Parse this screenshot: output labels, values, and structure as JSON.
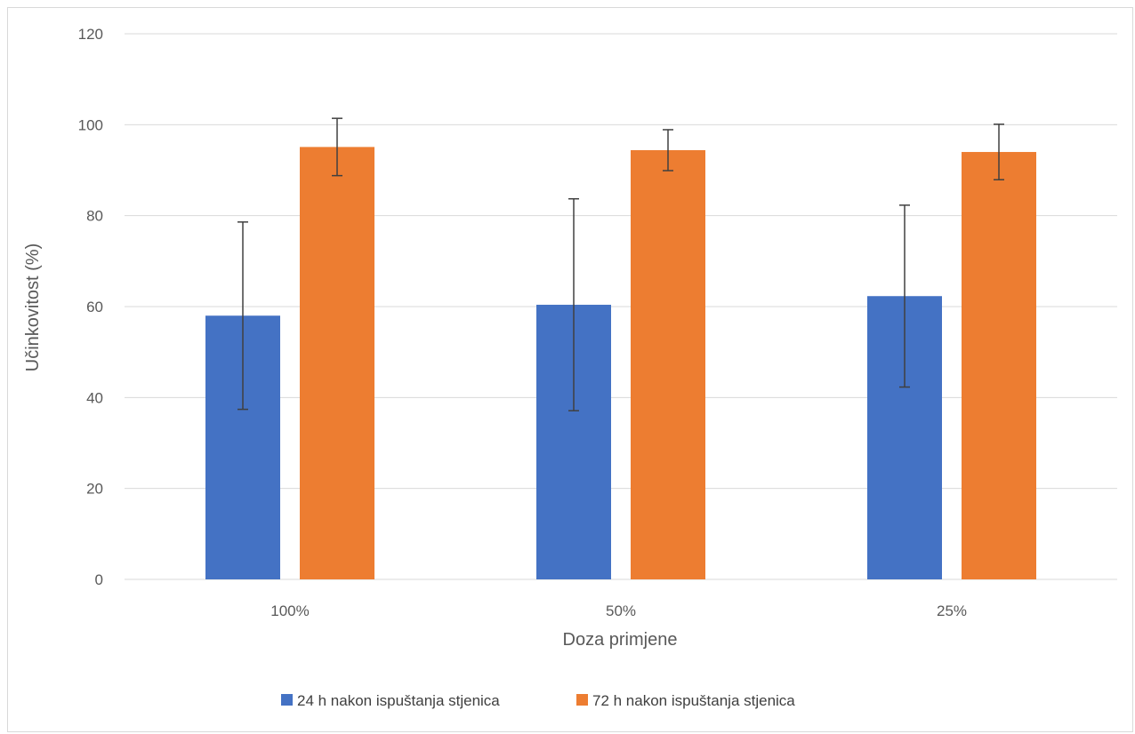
{
  "chart_data": {
    "type": "bar",
    "title": "",
    "xlabel": "Doza primjene",
    "ylabel": "Učinkovitost (%)",
    "ylim": [
      0,
      120
    ],
    "yticks": [
      0,
      20,
      40,
      60,
      80,
      100,
      120
    ],
    "grid": true,
    "legend_position": "bottom",
    "categories": [
      "100%",
      "50%",
      "25%"
    ],
    "series": [
      {
        "name": "24 h nakon ispuštanja stjenica",
        "color": "#4472C4",
        "values": [
          58,
          60.4,
          62.3
        ],
        "error": [
          20.6,
          23.3,
          20
        ]
      },
      {
        "name": "72 h nakon ispuštanja stjenica",
        "color": "#ED7D31",
        "values": [
          95.1,
          94.4,
          94
        ],
        "error": [
          6.3,
          4.5,
          6.1
        ]
      }
    ]
  }
}
